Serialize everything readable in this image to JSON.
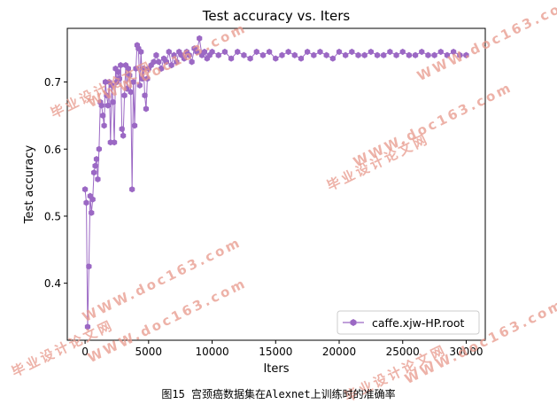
{
  "chart_data": {
    "type": "line",
    "title": "Test accuracy  vs. Iters",
    "xlabel": "Iters",
    "ylabel": "Test accuracy",
    "xlim": [
      -1400,
      31500
    ],
    "ylim": [
      0.315,
      0.78
    ],
    "xticks": [
      0,
      5000,
      10000,
      15000,
      20000,
      25000,
      30000
    ],
    "yticks": [
      0.4,
      0.5,
      0.6,
      0.7
    ],
    "grid": false,
    "legend_position": "lower-right",
    "series": [
      {
        "name": "caffe.xjw-HP.root",
        "color": "#9b68c4",
        "marker": "hexagon",
        "x": [
          0,
          100,
          200,
          300,
          400,
          500,
          600,
          700,
          800,
          900,
          1000,
          1100,
          1200,
          1300,
          1400,
          1500,
          1600,
          1700,
          1800,
          1900,
          2000,
          2100,
          2200,
          2300,
          2400,
          2500,
          2600,
          2700,
          2800,
          2900,
          3000,
          3100,
          3200,
          3300,
          3400,
          3500,
          3600,
          3700,
          3800,
          3900,
          4000,
          4100,
          4200,
          4300,
          4400,
          4500,
          4600,
          4700,
          4800,
          4900,
          5000,
          5200,
          5400,
          5600,
          5800,
          6000,
          6200,
          6400,
          6600,
          6800,
          7000,
          7200,
          7400,
          7600,
          7800,
          8000,
          8200,
          8400,
          8600,
          8800,
          9000,
          9200,
          9400,
          9600,
          9800,
          10000,
          10500,
          11000,
          11500,
          12000,
          12500,
          13000,
          13500,
          14000,
          14500,
          15000,
          15500,
          16000,
          16500,
          17000,
          17500,
          18000,
          18500,
          19000,
          19500,
          20000,
          20500,
          21000,
          21500,
          22000,
          22500,
          23000,
          23500,
          24000,
          24500,
          25000,
          25500,
          26000,
          26500,
          27000,
          27500,
          28000,
          28500,
          29000,
          29500,
          30000
        ],
        "y": [
          0.54,
          0.52,
          0.335,
          0.425,
          0.53,
          0.505,
          0.525,
          0.565,
          0.575,
          0.585,
          0.555,
          0.6,
          0.67,
          0.665,
          0.65,
          0.635,
          0.7,
          0.68,
          0.665,
          0.7,
          0.61,
          0.695,
          0.67,
          0.61,
          0.72,
          0.7,
          0.715,
          0.705,
          0.725,
          0.63,
          0.62,
          0.68,
          0.725,
          0.69,
          0.72,
          0.71,
          0.685,
          0.54,
          0.7,
          0.635,
          0.72,
          0.755,
          0.75,
          0.695,
          0.745,
          0.705,
          0.72,
          0.68,
          0.66,
          0.705,
          0.72,
          0.725,
          0.73,
          0.74,
          0.73,
          0.72,
          0.735,
          0.73,
          0.745,
          0.725,
          0.74,
          0.73,
          0.745,
          0.74,
          0.735,
          0.745,
          0.74,
          0.73,
          0.75,
          0.745,
          0.765,
          0.74,
          0.745,
          0.735,
          0.74,
          0.745,
          0.74,
          0.745,
          0.735,
          0.745,
          0.74,
          0.735,
          0.745,
          0.74,
          0.745,
          0.735,
          0.74,
          0.745,
          0.74,
          0.735,
          0.745,
          0.74,
          0.745,
          0.74,
          0.735,
          0.745,
          0.74,
          0.745,
          0.74,
          0.74,
          0.745,
          0.74,
          0.74,
          0.745,
          0.74,
          0.745,
          0.74,
          0.74,
          0.745,
          0.74,
          0.74,
          0.745,
          0.74,
          0.745,
          0.74,
          0.74
        ]
      }
    ]
  },
  "watermark_text": "毕业设计论文网",
  "watermark_url": "WWW.doc163.com",
  "caption": "图15 宫颈癌数据集在Alexnet上训练时的准确率"
}
